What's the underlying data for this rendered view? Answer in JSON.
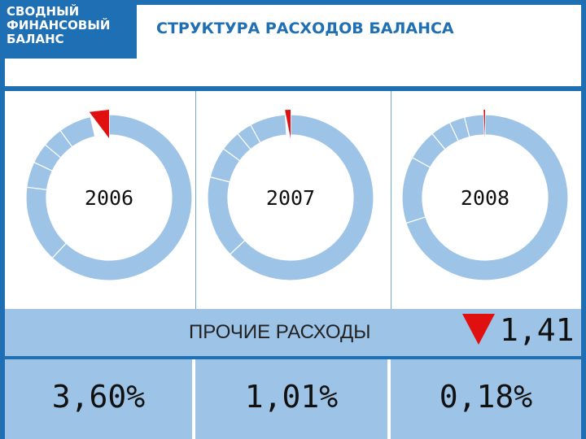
{
  "header": {
    "section_lines": [
      "СВОДНЫЙ",
      "ФИНАНСОВЫЙ",
      "БАЛАНС"
    ],
    "title": "СТРУКТУРА РАСХОДОВ БАЛАНСА"
  },
  "colors": {
    "frame": "#1f6fb5",
    "ring": "#9dc3e6",
    "highlight": "#e01010"
  },
  "chart_data": {
    "type": "pie",
    "charts": [
      {
        "year_label": "2006",
        "highlight_share": 3.6,
        "other_segments": [
          62,
          15,
          5,
          4,
          4,
          6.4
        ]
      },
      {
        "year_label": "2007",
        "highlight_share": 1.01,
        "other_segments": [
          63,
          16,
          6,
          4,
          3,
          6.99
        ]
      },
      {
        "year_label": "2008",
        "highlight_share": 0.18,
        "other_segments": [
          70,
          13,
          6,
          4,
          3,
          3.82
        ]
      }
    ]
  },
  "band": {
    "label": "ПРОЧИЕ РАСХОДЫ",
    "change_value": "1,41",
    "change_direction": "down"
  },
  "values": [
    "3,60%",
    "1,01%",
    "0,18%"
  ]
}
